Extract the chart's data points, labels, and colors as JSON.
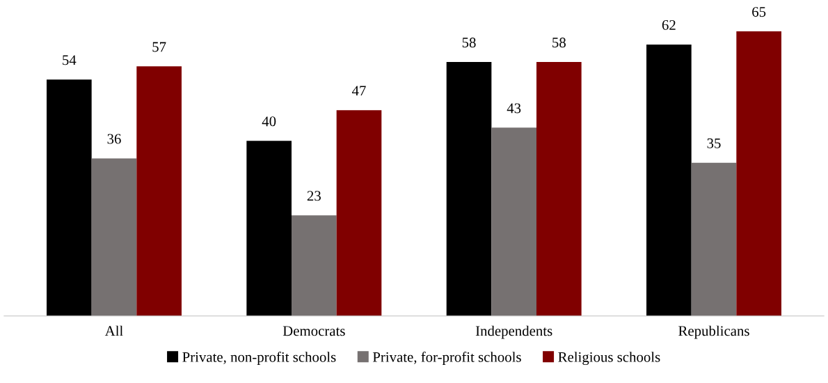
{
  "chart_data": {
    "type": "bar",
    "categories": [
      "All",
      "Democrats",
      "Independents",
      "Republicans"
    ],
    "series": [
      {
        "name": "Private, non-profit schools",
        "color": "#000000",
        "values": [
          54,
          40,
          58,
          62
        ]
      },
      {
        "name": "Private, for-profit schools",
        "color": "#767171",
        "values": [
          36,
          23,
          43,
          35
        ]
      },
      {
        "name": "Religious schools",
        "color": "#800000",
        "values": [
          57,
          47,
          58,
          65
        ]
      }
    ],
    "data_labels": true,
    "legend": "bottom",
    "grid": false,
    "tick_labels": "x"
  }
}
